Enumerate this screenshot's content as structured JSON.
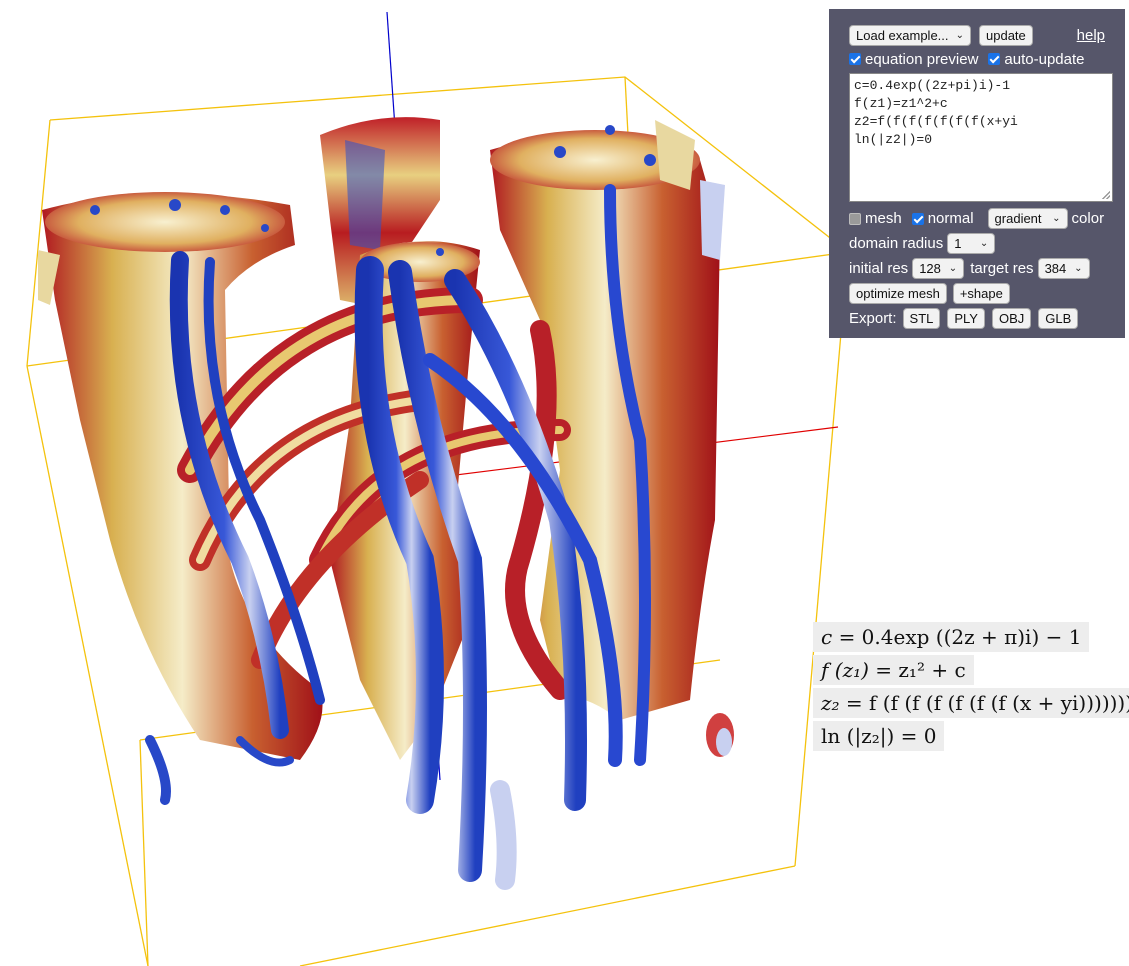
{
  "panel": {
    "example_select": "Load example...",
    "update_button": "update",
    "help_link": "help",
    "equation_preview_label": "equation preview",
    "equation_preview_checked": true,
    "auto_update_label": "auto-update",
    "auto_update_checked": true,
    "equation_lines": [
      "c=0.4exp((2z+pi)i)-1",
      "f(z1)=z1^2+c",
      "z2=f(f(f(f(f(f(f(x+yi",
      "ln(|z2|)=0"
    ],
    "mesh_label": "mesh",
    "mesh_checked": false,
    "normal_label": "normal",
    "normal_checked": true,
    "color_mode_select": "gradient",
    "color_label": "color",
    "domain_radius_label": "domain radius",
    "domain_radius_select": "1",
    "initial_res_label": "initial res",
    "initial_res_select": "128",
    "target_res_label": "target res",
    "target_res_select": "384",
    "optimize_mesh_button": "optimize mesh",
    "add_shape_button": "+shape",
    "export_label": "Export:",
    "export_buttons": [
      "STL",
      "PLY",
      "OBJ",
      "GLB"
    ]
  },
  "preview": {
    "line1": {
      "lhs": "c",
      "rhs": "= 0.4exp ((2z + π)i) − 1"
    },
    "line2": {
      "lhs": "f (z₁)",
      "rhs": "= z₁² + c"
    },
    "line3": {
      "lhs": "z₂",
      "rhs": "= f (f (f (f (f (f (f (x + yi)))))))"
    },
    "line4": {
      "lhs": "ln (|z₂|)",
      "rhs": "= 0"
    }
  },
  "colors": {
    "panel_bg": "#56566a",
    "bounding_box": "#f4c20d",
    "axis_x": "#e00000",
    "axis_z": "#0000cc",
    "surface_red": "#b01820",
    "surface_yellow": "#f0e0a0",
    "surface_blue": "#2848c8"
  }
}
